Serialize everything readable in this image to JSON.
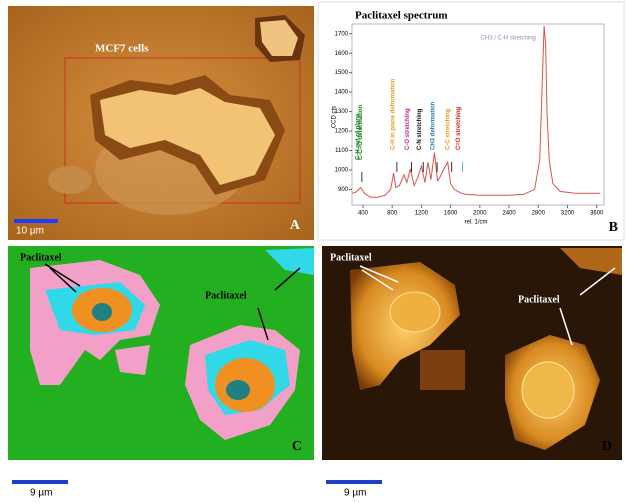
{
  "panel_a": {
    "label": "A",
    "annotation": "MCF7 cells",
    "scale_bar": "10 µm"
  },
  "chart_data": {
    "type": "line",
    "label": "B",
    "title": "Paclitaxel spectrum",
    "x_label": "rel. 1/cm",
    "y_label": "CCD cts",
    "x": [
      250,
      300,
      370,
      420,
      500,
      600,
      700,
      780,
      820,
      850,
      900,
      960,
      1000,
      1050,
      1100,
      1150,
      1200,
      1250,
      1290,
      1330,
      1380,
      1420,
      1450,
      1500,
      1560,
      1600,
      1650,
      1700,
      1750,
      1800,
      2000,
      2200,
      2400,
      2600,
      2750,
      2820,
      2860,
      2880,
      2900,
      2920,
      2950,
      3000,
      3100,
      3300,
      3500,
      3650
    ],
    "values": [
      880,
      885,
      910,
      880,
      860,
      860,
      870,
      900,
      985,
      910,
      920,
      975,
      935,
      1005,
      920,
      960,
      1020,
      935,
      1040,
      950,
      1090,
      945,
      960,
      1000,
      1040,
      930,
      900,
      890,
      880,
      875,
      870,
      870,
      870,
      875,
      900,
      1050,
      1500,
      1740,
      1650,
      1300,
      1050,
      930,
      890,
      880,
      880,
      880
    ],
    "color": "#d9534f",
    "xlim": [
      250,
      3700
    ],
    "ylim": [
      820,
      1750
    ],
    "xticks": [
      400,
      800,
      1200,
      1600,
      2000,
      2400,
      2800,
      3200,
      3600
    ],
    "yticks": [
      900,
      1000,
      1100,
      1200,
      1300,
      1400,
      1500,
      1600,
      1700
    ],
    "annotations": [
      {
        "text": "C-H out of plane",
        "color": "#1a7a1a"
      },
      {
        "text": "C-C=O deformation",
        "color": "#1a7a1a"
      },
      {
        "text": "C-H in plane deformation",
        "color": "#e0a020"
      },
      {
        "text": "C-O stretching",
        "color": "#c02090"
      },
      {
        "text": "C-N stretching",
        "color": "#111111"
      },
      {
        "text": "CH3 deformation",
        "color": "#2a7ab0"
      },
      {
        "text": "C-C stretching",
        "color": "#e0a020"
      },
      {
        "text": "C=O stretching",
        "color": "#d02020"
      },
      {
        "text": "CH3 / C-H stretching",
        "color": "#9a8ab8"
      }
    ]
  },
  "panel_c": {
    "label": "C",
    "annotations": [
      "Paclitaxel",
      "Paclitaxel"
    ],
    "scale_bar": "9 µm"
  },
  "panel_d": {
    "label": "D",
    "annotations": [
      "Paclitaxel",
      "Paclitaxel"
    ],
    "scale_bar": "9 µm"
  }
}
